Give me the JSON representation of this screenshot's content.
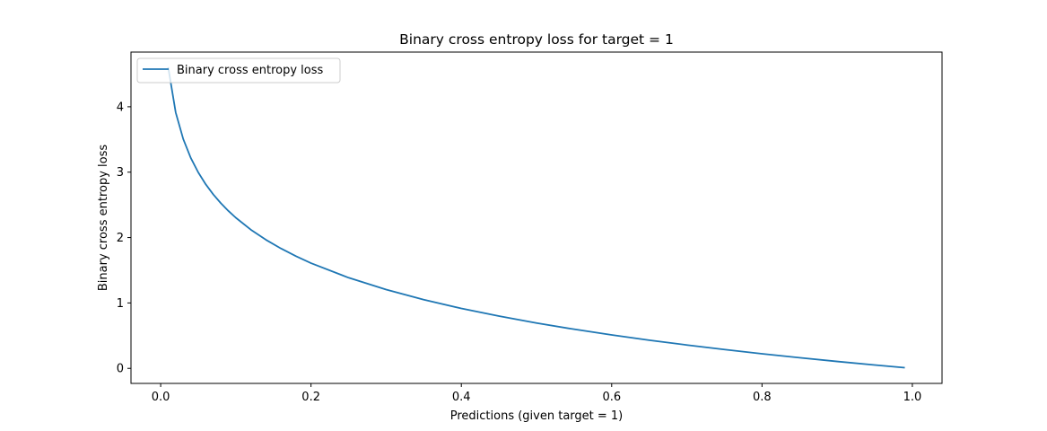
{
  "chart_data": {
    "type": "line",
    "title": "Binary cross entropy loss for target = 1",
    "xlabel": "Predictions (given target = 1)",
    "ylabel": "Binary cross entropy loss",
    "xlim": [
      -0.0395,
      1.0395
    ],
    "ylim": [
      -0.2303,
      4.8362
    ],
    "xticks": [
      0.0,
      0.2,
      0.4,
      0.6,
      0.8,
      1.0
    ],
    "xtick_labels": [
      "0.0",
      "0.2",
      "0.4",
      "0.6",
      "0.8",
      "1.0"
    ],
    "yticks": [
      0,
      1,
      2,
      3,
      4
    ],
    "ytick_labels": [
      "0",
      "1",
      "2",
      "3",
      "4"
    ],
    "grid": false,
    "legend_position": "upper-left",
    "series": [
      {
        "name": "Binary cross entropy loss",
        "color": "#1f77b4",
        "x": [
          0.01,
          0.02,
          0.03,
          0.04,
          0.05,
          0.06,
          0.07,
          0.08,
          0.09,
          0.1,
          0.12,
          0.14,
          0.16,
          0.18,
          0.2,
          0.25,
          0.3,
          0.35,
          0.4,
          0.45,
          0.5,
          0.55,
          0.6,
          0.65,
          0.7,
          0.75,
          0.8,
          0.85,
          0.9,
          0.95,
          0.99
        ],
        "y": [
          4.605,
          3.912,
          3.507,
          3.219,
          2.996,
          2.813,
          2.659,
          2.526,
          2.408,
          2.303,
          2.12,
          1.966,
          1.833,
          1.715,
          1.609,
          1.386,
          1.204,
          1.05,
          0.916,
          0.799,
          0.693,
          0.598,
          0.511,
          0.431,
          0.357,
          0.288,
          0.223,
          0.163,
          0.105,
          0.051,
          0.01
        ]
      }
    ]
  }
}
